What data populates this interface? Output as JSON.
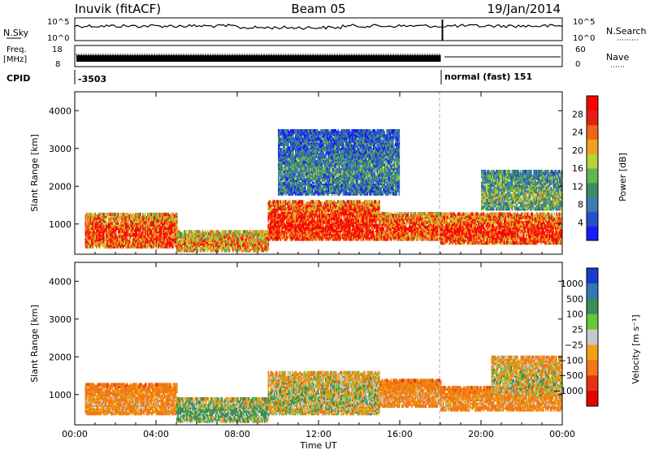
{
  "header": {
    "station": "Inuvik (fitACF)",
    "beam": "Beam 05",
    "date": "19/Jan/2014",
    "nsky_label": "N.Sky",
    "nsearch_label": "N.Search",
    "freq_label": "Freq.",
    "freq_unit": "[MHz]",
    "nave_label": "Nave",
    "cpid_label": "CPID",
    "cpid_value_1": "-3503",
    "cpid_value_2": "normal (fast) 151",
    "noise_tick_top": "10^5",
    "noise_tick_bottom": "10^0",
    "freq_tick_top": "18",
    "freq_tick_bottom": "8",
    "nave_tick_top": "60",
    "nave_tick_bottom": "0"
  },
  "colors": {
    "power_scale": [
      "#1a1aff",
      "#2850c8",
      "#3c7ab4",
      "#3c8c64",
      "#64b450",
      "#b4d23c",
      "#f0a020",
      "#f06414",
      "#e61e14",
      "#ff0000"
    ],
    "velocity_scale": [
      "#1a3cc8",
      "#3278b4",
      "#3c8c5a",
      "#64c83c",
      "#c8c8c8",
      "#f0a014",
      "#f07814",
      "#e63214",
      "#e60000"
    ],
    "ground_scatter": "#c0c0c0"
  },
  "chart_data": [
    {
      "type": "heatmap",
      "panel": "power",
      "ylabel": "Slant Range [km]",
      "xlabel": "Time UT",
      "x_ticks": [
        "00:00",
        "04:00",
        "08:00",
        "12:00",
        "16:00",
        "20:00",
        "00:00"
      ],
      "y_ticks": [
        "1000",
        "2000",
        "3000",
        "4000"
      ],
      "ylim": [
        200,
        4500
      ],
      "xlim_hours": [
        0,
        24
      ],
      "colorbar_label": "Power [dB]",
      "colorbar_ticks": [
        "4",
        "8",
        "12",
        "16",
        "20",
        "24",
        "28"
      ],
      "colorbar_range": [
        0,
        30
      ],
      "regions_summary": [
        {
          "t_start": 0.5,
          "t_end": 5.0,
          "range_km": [
            400,
            1300
          ],
          "power_db": 25
        },
        {
          "t_start": 5.0,
          "t_end": 9.5,
          "range_km": [
            300,
            800
          ],
          "power_db": 22
        },
        {
          "t_start": 9.5,
          "t_end": 15.0,
          "range_km": [
            600,
            1600
          ],
          "power_db": 27
        },
        {
          "t_start": 15.0,
          "t_end": 18.0,
          "range_km": [
            600,
            1300
          ],
          "power_db": 25
        },
        {
          "t_start": 18.0,
          "t_end": 24.0,
          "range_km": [
            500,
            1300
          ],
          "power_db": 26
        },
        {
          "t_start": 20.0,
          "t_end": 24.0,
          "range_km": [
            1400,
            2400
          ],
          "power_db": 14
        },
        {
          "t_start": 10.0,
          "t_end": 16.0,
          "range_km": [
            1800,
            3500
          ],
          "power_db": 10
        }
      ]
    },
    {
      "type": "heatmap",
      "panel": "velocity",
      "ylabel": "Slant Range [km]",
      "xlabel": "Time UT",
      "x_ticks": [
        "00:00",
        "04:00",
        "08:00",
        "12:00",
        "16:00",
        "20:00",
        "00:00"
      ],
      "y_ticks": [
        "1000",
        "2000",
        "3000",
        "4000"
      ],
      "ylim": [
        200,
        4500
      ],
      "xlim_hours": [
        0,
        24
      ],
      "colorbar_label": "Velocity [m s⁻¹]",
      "colorbar_ticks": [
        "1000",
        "500",
        "100",
        "25",
        "−25",
        "−100",
        "−500",
        "−1000"
      ],
      "regions_summary": [
        {
          "t_start": 0.5,
          "t_end": 5.0,
          "range_km": [
            500,
            1300
          ],
          "velocity_ms": -100
        },
        {
          "t_start": 5.0,
          "t_end": 9.5,
          "range_km": [
            300,
            900
          ],
          "velocity_ms": 100
        },
        {
          "t_start": 9.5,
          "t_end": 15.0,
          "range_km": [
            500,
            1600
          ],
          "velocity_ms": 25
        },
        {
          "t_start": 15.0,
          "t_end": 18.0,
          "range_km": [
            700,
            1400
          ],
          "velocity_ms": -100
        },
        {
          "t_start": 18.0,
          "t_end": 24.0,
          "range_km": [
            600,
            1200
          ],
          "velocity_ms": -100
        },
        {
          "t_start": 20.5,
          "t_end": 24.0,
          "range_km": [
            1000,
            2000
          ],
          "velocity_ms": 0
        }
      ]
    }
  ]
}
